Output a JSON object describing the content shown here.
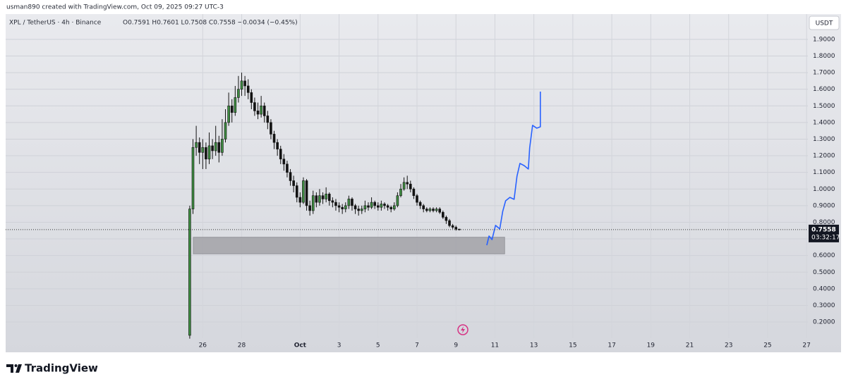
{
  "chart_data": {
    "type": "candlestick",
    "credit": "usman890 created with TradingView.com, Oct 09, 2025 09:27 UTC-3",
    "symbol": "XPL / TetherUS · 4h · Binance",
    "ohlc_text": "O0.7591 H0.7601 L0.7508 C0.7558 −0.0034 (−0.45%)",
    "currency": "USDT",
    "countdown": "03:32:17",
    "brand": "TradingView",
    "up_color": "#3d8b40",
    "down_color": "#131313",
    "projection_color": "#2962ff",
    "zone_color": "#a3a3a8",
    "grid": true,
    "x": [
      0,
      1,
      2,
      3,
      4,
      5,
      6,
      7,
      8,
      9,
      10,
      11,
      12,
      13,
      14,
      15,
      16,
      17,
      18,
      19,
      20,
      21,
      22,
      23,
      24,
      25,
      26,
      27,
      28,
      29,
      30,
      31,
      32,
      33,
      34,
      35,
      36,
      37,
      38,
      39,
      40,
      41,
      42,
      43,
      44,
      45,
      46,
      47,
      48,
      49,
      50,
      51,
      52,
      53,
      54,
      55,
      56,
      57,
      58,
      59,
      60,
      61,
      62,
      63,
      64,
      65,
      66,
      67,
      68,
      69,
      70,
      71,
      72,
      73,
      74,
      75,
      76,
      77,
      78,
      79,
      80,
      81,
      82,
      83
    ],
    "open": [
      0.12,
      0.88,
      1.25,
      1.28,
      1.22,
      1.25,
      1.18,
      1.26,
      1.23,
      1.28,
      1.22,
      1.3,
      1.4,
      1.5,
      1.46,
      1.55,
      1.6,
      1.65,
      1.62,
      1.58,
      1.52,
      1.47,
      1.45,
      1.5,
      1.44,
      1.4,
      1.33,
      1.28,
      1.24,
      1.18,
      1.15,
      1.1,
      1.05,
      1.02,
      0.95,
      0.92,
      1.05,
      0.9,
      0.87,
      0.96,
      0.92,
      0.96,
      0.94,
      0.97,
      0.93,
      0.92,
      0.9,
      0.89,
      0.88,
      0.9,
      0.94,
      0.9,
      0.88,
      0.87,
      0.88,
      0.9,
      0.89,
      0.92,
      0.9,
      0.89,
      0.91,
      0.9,
      0.89,
      0.88,
      0.9,
      0.96,
      1.0,
      1.04,
      1.03,
      1.0,
      0.96,
      0.92,
      0.9,
      0.88,
      0.87,
      0.88,
      0.87,
      0.88,
      0.86,
      0.83,
      0.81,
      0.78,
      0.77,
      0.7591
    ],
    "high": [
      0.9,
      1.3,
      1.38,
      1.31,
      1.3,
      1.28,
      1.34,
      1.3,
      1.38,
      1.32,
      1.42,
      1.48,
      1.58,
      1.54,
      1.62,
      1.68,
      1.7,
      1.68,
      1.66,
      1.6,
      1.55,
      1.52,
      1.56,
      1.52,
      1.47,
      1.42,
      1.35,
      1.3,
      1.26,
      1.21,
      1.17,
      1.12,
      1.08,
      1.04,
      0.98,
      1.07,
      1.06,
      0.93,
      0.99,
      0.98,
      1.0,
      0.98,
      1.01,
      0.98,
      0.95,
      0.94,
      0.92,
      0.91,
      0.92,
      0.96,
      0.95,
      0.91,
      0.9,
      0.9,
      0.93,
      0.92,
      0.95,
      0.93,
      0.92,
      0.93,
      0.92,
      0.91,
      0.9,
      0.92,
      0.98,
      1.03,
      1.07,
      1.08,
      1.05,
      1.01,
      0.97,
      0.93,
      0.91,
      0.89,
      0.89,
      0.89,
      0.89,
      0.89,
      0.87,
      0.84,
      0.82,
      0.79,
      0.78,
      0.7601
    ],
    "low": [
      0.1,
      0.85,
      1.2,
      1.15,
      1.12,
      1.12,
      1.15,
      1.18,
      1.2,
      1.16,
      1.2,
      1.28,
      1.38,
      1.4,
      1.44,
      1.52,
      1.56,
      1.56,
      1.54,
      1.48,
      1.44,
      1.42,
      1.43,
      1.4,
      1.36,
      1.3,
      1.24,
      1.2,
      1.15,
      1.11,
      1.07,
      1.02,
      0.98,
      0.92,
      0.89,
      0.91,
      0.87,
      0.84,
      0.85,
      0.89,
      0.9,
      0.91,
      0.92,
      0.9,
      0.89,
      0.87,
      0.86,
      0.85,
      0.86,
      0.88,
      0.87,
      0.85,
      0.84,
      0.85,
      0.86,
      0.87,
      0.88,
      0.88,
      0.87,
      0.87,
      0.88,
      0.87,
      0.86,
      0.87,
      0.89,
      0.95,
      0.99,
      1.0,
      0.98,
      0.94,
      0.9,
      0.88,
      0.86,
      0.86,
      0.86,
      0.86,
      0.86,
      0.85,
      0.82,
      0.79,
      0.77,
      0.76,
      0.75,
      0.7508
    ],
    "close": [
      0.88,
      1.25,
      1.28,
      1.22,
      1.25,
      1.18,
      1.26,
      1.23,
      1.28,
      1.22,
      1.3,
      1.4,
      1.5,
      1.46,
      1.55,
      1.6,
      1.65,
      1.62,
      1.58,
      1.52,
      1.47,
      1.45,
      1.5,
      1.44,
      1.4,
      1.33,
      1.28,
      1.24,
      1.18,
      1.15,
      1.1,
      1.05,
      1.02,
      0.95,
      0.92,
      1.05,
      0.9,
      0.87,
      0.96,
      0.92,
      0.96,
      0.94,
      0.97,
      0.93,
      0.92,
      0.9,
      0.89,
      0.88,
      0.9,
      0.94,
      0.9,
      0.88,
      0.87,
      0.88,
      0.9,
      0.89,
      0.92,
      0.9,
      0.89,
      0.91,
      0.9,
      0.89,
      0.88,
      0.9,
      0.96,
      1.0,
      1.04,
      1.03,
      1.0,
      0.96,
      0.92,
      0.9,
      0.88,
      0.87,
      0.88,
      0.87,
      0.88,
      0.86,
      0.83,
      0.81,
      0.78,
      0.77,
      0.7591,
      0.7558
    ],
    "zone": {
      "x": [
        1.1,
        97
      ],
      "y": [
        0.61,
        0.71
      ]
    },
    "projection": {
      "x": [
        91.5,
        92.2,
        93.1,
        94.2,
        95.5,
        96.4,
        97.3,
        98.6,
        99.9,
        100.8,
        101.7,
        103.0,
        104.3,
        104.7,
        105.6,
        106.9,
        108.0,
        108.0
      ],
      "y": [
        0.662,
        0.717,
        0.696,
        0.781,
        0.76,
        0.866,
        0.929,
        0.95,
        0.938,
        1.077,
        1.154,
        1.141,
        1.12,
        1.248,
        1.383,
        1.366,
        1.374,
        1.586
      ]
    },
    "xlim": [
      -56.7,
      190.4
    ],
    "ylim": [
      0.018,
      2.052
    ],
    "xticks": [
      {
        "value": 4,
        "label": "26"
      },
      {
        "value": 16,
        "label": "28"
      },
      {
        "value": 34,
        "label": "Oct"
      },
      {
        "value": 46,
        "label": "3"
      },
      {
        "value": 58,
        "label": "5"
      },
      {
        "value": 70,
        "label": "7"
      },
      {
        "value": 82,
        "label": "9"
      },
      {
        "value": 94,
        "label": "11"
      },
      {
        "value": 106,
        "label": "13"
      },
      {
        "value": 118,
        "label": "15"
      },
      {
        "value": 130,
        "label": "17"
      },
      {
        "value": 142,
        "label": "19"
      },
      {
        "value": 154,
        "label": "21"
      },
      {
        "value": 166,
        "label": "23"
      },
      {
        "value": 178,
        "label": "25"
      },
      {
        "value": 190,
        "label": "27"
      }
    ],
    "yticks": [
      {
        "value": 0.2,
        "label": "0.2000"
      },
      {
        "value": 0.3,
        "label": "0.3000"
      },
      {
        "value": 0.4,
        "label": "0.4000"
      },
      {
        "value": 0.5,
        "label": "0.5000"
      },
      {
        "value": 0.6,
        "label": "0.6000"
      },
      {
        "value": 0.7,
        "label": "0.7000"
      },
      {
        "value": 0.8,
        "label": "0.8000"
      },
      {
        "value": 0.9,
        "label": "0.9000"
      },
      {
        "value": 1.0,
        "label": "1.0000"
      },
      {
        "value": 1.1,
        "label": "1.1000"
      },
      {
        "value": 1.2,
        "label": "1.2000"
      },
      {
        "value": 1.3,
        "label": "1.3000"
      },
      {
        "value": 1.4,
        "label": "1.4000"
      },
      {
        "value": 1.5,
        "label": "1.5000"
      },
      {
        "value": 1.6,
        "label": "1.6000"
      },
      {
        "value": 1.7,
        "label": "1.7000"
      },
      {
        "value": 1.8,
        "label": "1.8000"
      },
      {
        "value": 1.9,
        "label": "1.9000"
      }
    ]
  }
}
